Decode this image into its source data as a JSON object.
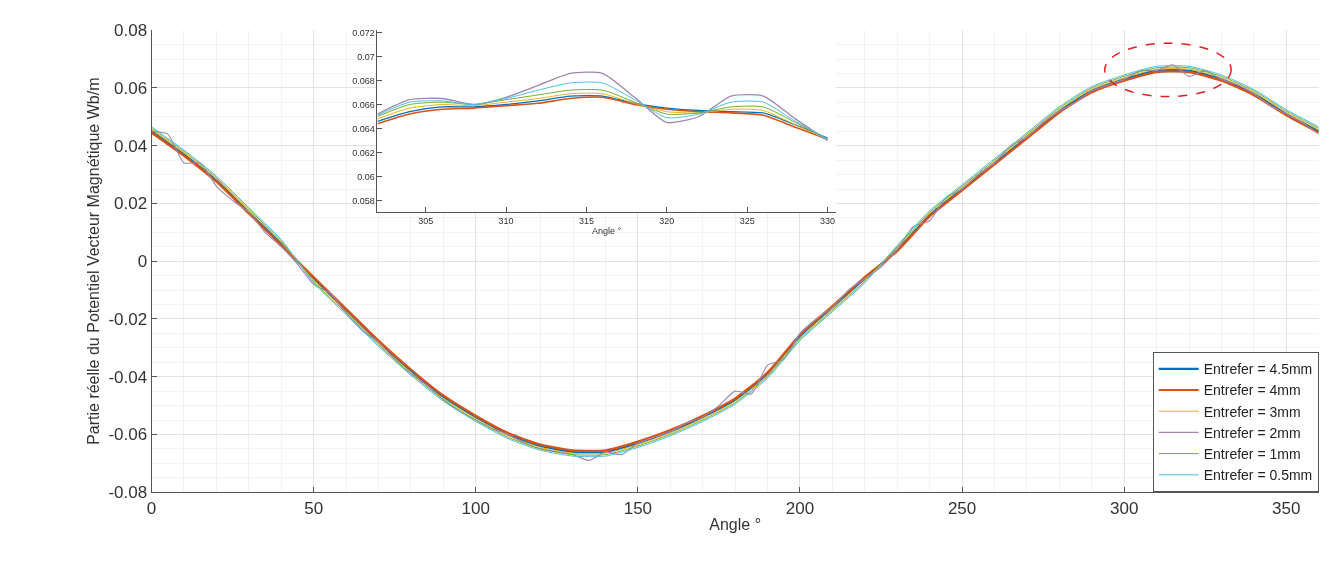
{
  "chart_data": [
    {
      "type": "line",
      "xlabel": "Angle °",
      "ylabel": "Partie réelle du Potentiel Vecteur Magnétique Wb/m",
      "x": [
        0,
        10,
        20,
        30,
        40,
        50,
        60,
        70,
        80,
        90,
        100,
        110,
        120,
        130,
        140,
        150,
        160,
        170,
        180,
        190,
        200,
        210,
        220,
        230,
        240,
        250,
        260,
        270,
        280,
        290,
        300,
        310,
        320,
        330,
        340,
        350,
        360
      ],
      "series": [
        {
          "name": "Entrefer = 4.5mm",
          "color": "#0072bd",
          "values": [
            0.045,
            0.037,
            0.028,
            0.017,
            0.006,
            -0.006,
            -0.017,
            -0.028,
            -0.038,
            -0.047,
            -0.054,
            -0.06,
            -0.064,
            -0.066,
            -0.066,
            -0.063,
            -0.059,
            -0.054,
            -0.048,
            -0.039,
            -0.026,
            -0.016,
            -0.006,
            0.004,
            0.016,
            0.025,
            0.034,
            0.043,
            0.052,
            0.059,
            0.063,
            0.066,
            0.066,
            0.063,
            0.058,
            0.051,
            0.045
          ]
        },
        {
          "name": "Entrefer = 4mm",
          "color": "#d95319",
          "values": [
            0.0445,
            0.0365,
            0.0275,
            0.0165,
            0.0055,
            -0.0055,
            -0.0165,
            -0.0275,
            -0.0375,
            -0.0465,
            -0.0535,
            -0.0595,
            -0.0635,
            -0.0655,
            -0.0655,
            -0.0625,
            -0.0585,
            -0.0535,
            -0.0475,
            -0.0385,
            -0.0255,
            -0.0155,
            -0.0055,
            0.0035,
            0.0155,
            0.0245,
            0.0335,
            0.0425,
            0.0515,
            0.0585,
            0.0625,
            0.0655,
            0.0655,
            0.0625,
            0.0575,
            0.0505,
            0.0445
          ]
        },
        {
          "name": "Entrefer = 3mm",
          "color": "#edb120",
          "values": [
            0.0455,
            0.0375,
            0.0285,
            0.0175,
            0.0065,
            -0.0065,
            -0.0175,
            -0.0285,
            -0.0385,
            -0.0475,
            -0.0545,
            -0.0605,
            -0.0645,
            -0.0665,
            -0.0665,
            -0.0635,
            -0.0595,
            -0.0545,
            -0.0485,
            -0.0395,
            -0.0265,
            -0.0165,
            -0.0065,
            0.0045,
            0.0165,
            0.0255,
            0.0345,
            0.0435,
            0.0525,
            0.0595,
            0.0635,
            0.0665,
            0.0665,
            0.0635,
            0.0585,
            0.0515,
            0.0455
          ]
        },
        {
          "name": "Entrefer = 2mm",
          "color": "#9e86b0",
          "x": [
            0,
            5,
            10,
            15,
            20,
            25,
            30,
            35,
            40,
            45,
            50,
            55,
            60,
            65,
            70,
            75,
            80,
            85,
            90,
            95,
            100,
            105,
            110,
            115,
            120,
            125,
            130,
            135,
            140,
            145,
            150,
            155,
            160,
            165,
            170,
            175,
            180,
            185,
            190,
            195,
            200,
            205,
            210,
            215,
            220,
            225,
            230,
            235,
            240,
            245,
            250,
            255,
            260,
            265,
            270,
            275,
            280,
            285,
            290,
            295,
            300,
            305,
            310,
            315,
            320,
            325,
            330,
            335,
            340,
            345,
            350,
            355,
            360
          ],
          "values": [
            0.045,
            0.044,
            0.034,
            0.034,
            0.026,
            0.021,
            0.017,
            0.01,
            0.005,
            -0.001,
            -0.008,
            -0.011,
            -0.018,
            -0.024,
            -0.028,
            -0.034,
            -0.039,
            -0.043,
            -0.048,
            -0.052,
            -0.055,
            -0.058,
            -0.06,
            -0.063,
            -0.065,
            -0.066,
            -0.067,
            -0.069,
            -0.066,
            -0.067,
            -0.063,
            -0.061,
            -0.059,
            -0.056,
            -0.054,
            -0.05,
            -0.045,
            -0.046,
            -0.036,
            -0.034,
            -0.025,
            -0.02,
            -0.016,
            -0.01,
            -0.006,
            -0.002,
            0.004,
            0.012,
            0.014,
            0.022,
            0.025,
            0.03,
            0.034,
            0.04,
            0.043,
            0.048,
            0.052,
            0.055,
            0.059,
            0.061,
            0.063,
            0.066,
            0.066,
            0.068,
            0.064,
            0.066,
            0.063,
            0.061,
            0.058,
            0.054,
            0.051,
            0.048,
            0.044
          ]
        },
        {
          "name": "Entrefer = 1mm",
          "color": "#77ac30",
          "values": [
            0.046,
            0.038,
            0.029,
            0.018,
            0.007,
            -0.007,
            -0.018,
            -0.029,
            -0.039,
            -0.048,
            -0.055,
            -0.061,
            -0.065,
            -0.067,
            -0.067,
            -0.064,
            -0.06,
            -0.055,
            -0.049,
            -0.04,
            -0.027,
            -0.017,
            -0.007,
            0.005,
            0.017,
            0.026,
            0.035,
            0.044,
            0.053,
            0.06,
            0.064,
            0.067,
            0.067,
            0.064,
            0.059,
            0.052,
            0.046
          ]
        },
        {
          "name": "Entrefer = 0.5mm",
          "color": "#4dbeee",
          "values": [
            0.0465,
            0.0385,
            0.0295,
            0.0185,
            0.0075,
            -0.0075,
            -0.0185,
            -0.0295,
            -0.0395,
            -0.0485,
            -0.0555,
            -0.0615,
            -0.0655,
            -0.0675,
            -0.0675,
            -0.0645,
            -0.0605,
            -0.0555,
            -0.0495,
            -0.0405,
            -0.0275,
            -0.0175,
            -0.0075,
            0.0055,
            0.0175,
            0.0265,
            0.0355,
            0.0445,
            0.0535,
            0.0605,
            0.0645,
            0.0675,
            0.0675,
            0.0645,
            0.0595,
            0.0525,
            0.0465
          ]
        }
      ],
      "xlim": [
        0,
        360
      ],
      "xticks": [
        0,
        50,
        100,
        150,
        200,
        250,
        300,
        350
      ],
      "ylim": [
        -0.08,
        0.08
      ],
      "yticks": [
        -0.08,
        -0.06,
        -0.04,
        -0.02,
        0,
        0.02,
        0.04,
        0.06,
        0.08
      ],
      "grid": true,
      "legend": "bottom right"
    },
    {
      "type": "line",
      "xlabel": "Angle °",
      "x": [
        302,
        304,
        306,
        308,
        310,
        312,
        314,
        316,
        318,
        320,
        322,
        324,
        326,
        328,
        330
      ],
      "series": [
        {
          "color": "#0072bd",
          "values": [
            0.0646,
            0.0654,
            0.0658,
            0.0658,
            0.066,
            0.0663,
            0.0667,
            0.0667,
            0.0661,
            0.0657,
            0.0655,
            0.0654,
            0.0653,
            0.0643,
            0.0632
          ]
        },
        {
          "color": "#d95319",
          "values": [
            0.0644,
            0.0652,
            0.0656,
            0.0657,
            0.0659,
            0.0661,
            0.0665,
            0.0666,
            0.066,
            0.0656,
            0.0654,
            0.0653,
            0.0651,
            0.0641,
            0.0631
          ]
        },
        {
          "color": "#edb120",
          "values": [
            0.0648,
            0.0657,
            0.066,
            0.0659,
            0.0662,
            0.0665,
            0.0669,
            0.0669,
            0.0661,
            0.0654,
            0.0653,
            0.0656,
            0.0655,
            0.0643,
            0.0631
          ]
        },
        {
          "color": "#9e86b0",
          "values": [
            0.0652,
            0.0664,
            0.0665,
            0.066,
            0.0666,
            0.0676,
            0.0686,
            0.0686,
            0.0666,
            0.0645,
            0.065,
            0.0667,
            0.0667,
            0.0648,
            0.063
          ]
        },
        {
          "color": "#77ac30",
          "values": [
            0.065,
            0.066,
            0.0662,
            0.066,
            0.0664,
            0.0668,
            0.0672,
            0.0672,
            0.0662,
            0.0652,
            0.0653,
            0.0658,
            0.0658,
            0.0645,
            0.0631
          ]
        },
        {
          "color": "#4dbeee",
          "values": [
            0.0651,
            0.0662,
            0.0663,
            0.066,
            0.0665,
            0.0672,
            0.0678,
            0.0678,
            0.0664,
            0.0649,
            0.0652,
            0.0662,
            0.0662,
            0.0646,
            0.0631
          ]
        }
      ],
      "xlim": [
        302,
        330.5
      ],
      "xticks": [
        305,
        310,
        315,
        320,
        325,
        330
      ],
      "ylim": [
        0.057,
        0.0722
      ],
      "yticks": [
        0.058,
        0.06,
        0.062,
        0.064,
        0.066,
        0.068,
        0.07,
        0.072
      ]
    }
  ]
}
